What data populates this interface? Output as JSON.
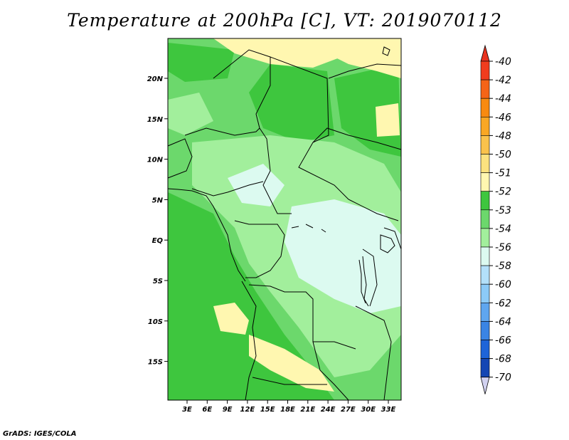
{
  "title": "Temperature at 200hPa [C], VT: 2019070112",
  "credit": "GrADS: IGES/COLA",
  "map": {
    "lat_ticks": [
      "20N",
      "15N",
      "10N",
      "5N",
      "EQ",
      "5S",
      "10S",
      "15S"
    ],
    "lon_ticks": [
      "3E",
      "6E",
      "9E",
      "12E",
      "15E",
      "18E",
      "21E",
      "24E",
      "27E",
      "30E",
      "33E"
    ]
  },
  "colorbar": {
    "levels": [
      {
        "label": "-40",
        "color": "#f03c1e"
      },
      {
        "label": "-42",
        "color": "#f56417"
      },
      {
        "label": "-44",
        "color": "#f88a10"
      },
      {
        "label": "-46",
        "color": "#f9a724"
      },
      {
        "label": "-48",
        "color": "#fac24c"
      },
      {
        "label": "-50",
        "color": "#fce27f"
      },
      {
        "label": "-51",
        "color": "#fff7b0"
      },
      {
        "label": "-52",
        "color": "#3ec63e"
      },
      {
        "label": "-53",
        "color": "#6cd86c"
      },
      {
        "label": "-54",
        "color": "#a2ef9c"
      },
      {
        "label": "-56",
        "color": "#dcfaf0"
      },
      {
        "label": "-58",
        "color": "#b3e0fa"
      },
      {
        "label": "-60",
        "color": "#8ccaf7"
      },
      {
        "label": "-62",
        "color": "#5fa6ef"
      },
      {
        "label": "-64",
        "color": "#3a84e4"
      },
      {
        "label": "-66",
        "color": "#1e64d8"
      },
      {
        "label": "-68",
        "color": "#1446b4"
      },
      {
        "label": "-70",
        "color": "#0a1e78"
      }
    ],
    "top_arrow_color": "#e8321e",
    "bottom_arrow_color": "#d2d2f0"
  }
}
